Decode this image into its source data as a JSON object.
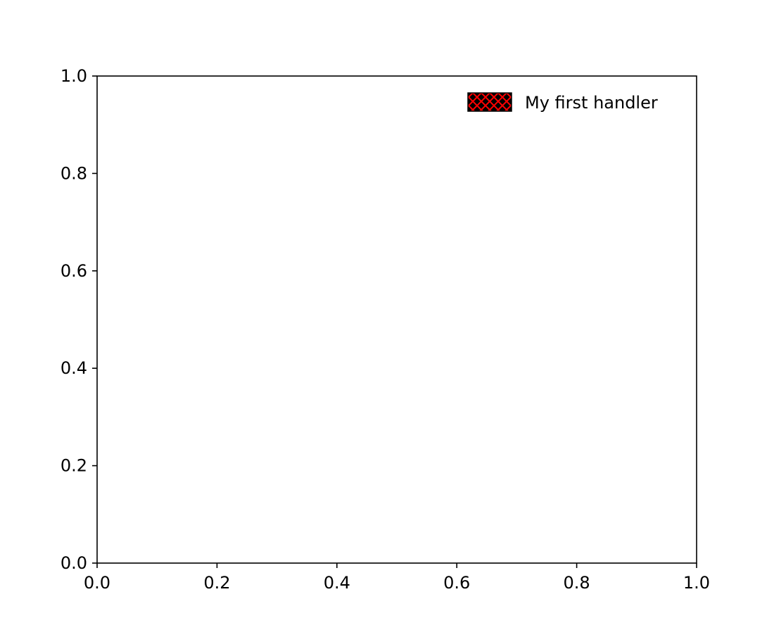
{
  "chart_data": {
    "type": "line",
    "title": "",
    "xlabel": "",
    "ylabel": "",
    "xlim": [
      0.0,
      1.0
    ],
    "ylim": [
      0.0,
      1.0
    ],
    "x_ticks": [
      "0.0",
      "0.2",
      "0.4",
      "0.6",
      "0.8",
      "1.0"
    ],
    "y_ticks": [
      "0.0",
      "0.2",
      "0.4",
      "0.6",
      "0.8",
      "1.0"
    ],
    "grid": false,
    "series": [],
    "legend": {
      "placement": "top-right",
      "entries": [
        {
          "label": "My first handler",
          "face_color": "#000000",
          "pattern_color": "#ff0000",
          "icon": "crosshatch-patch-icon"
        }
      ]
    }
  }
}
